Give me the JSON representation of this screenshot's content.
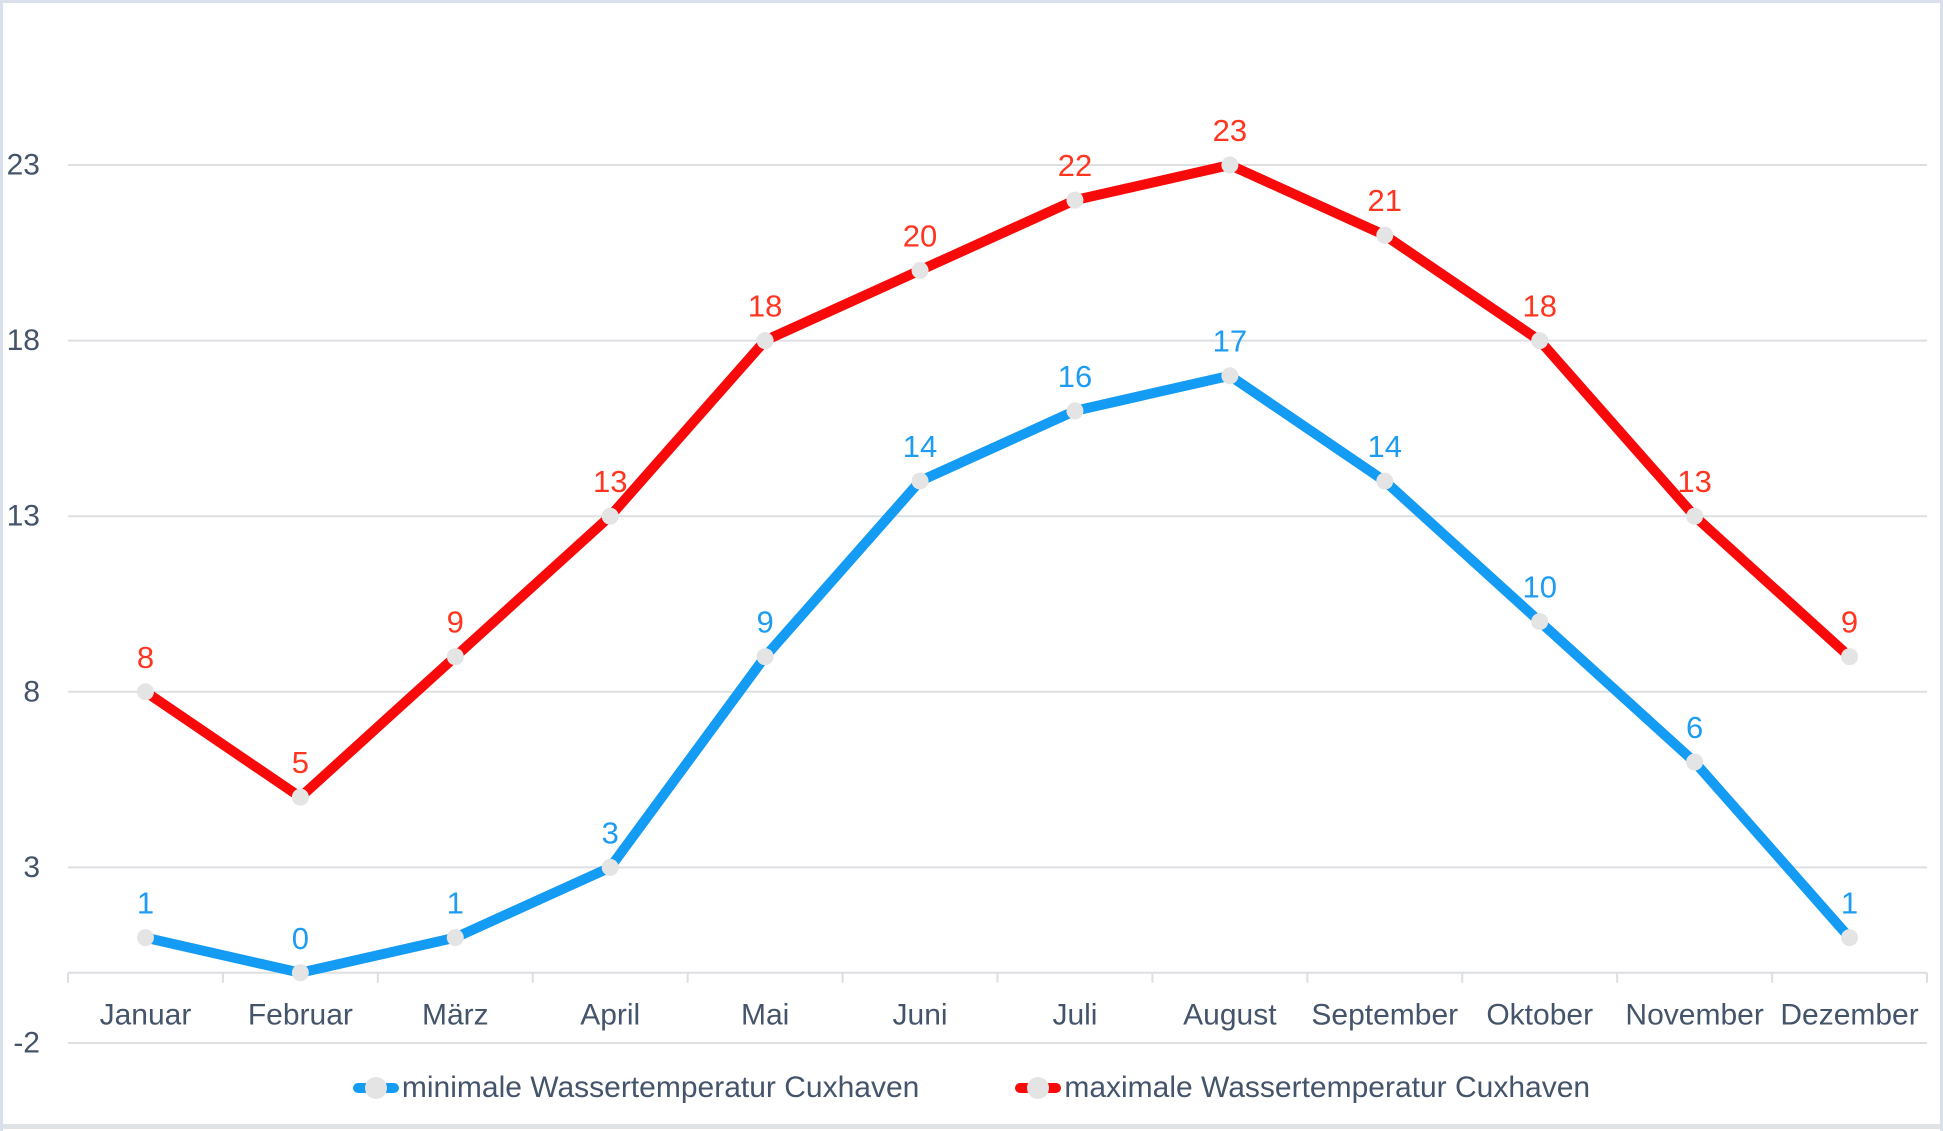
{
  "page": {
    "background": "#ffffff",
    "border_color": "#d9e0ec",
    "bottom_strip_color": "#dfe3e8"
  },
  "chart_data": {
    "type": "line",
    "title": "",
    "xlabel": "",
    "ylabel": "",
    "categories": [
      "Januar",
      "Februar",
      "März",
      "April",
      "Mai",
      "Juni",
      "Juli",
      "August",
      "September",
      "Oktober",
      "November",
      "Dezember"
    ],
    "series": [
      {
        "name": "minimale Wassertemperatur Cuxhaven",
        "values": [
          1,
          0,
          1,
          3,
          9,
          14,
          16,
          17,
          14,
          10,
          6,
          1
        ],
        "line_color": "#149bf3",
        "label_color": "#1e9cf2"
      },
      {
        "name": "maximale Wassertemperatur Cuxhaven",
        "values": [
          8,
          5,
          9,
          13,
          18,
          20,
          22,
          23,
          21,
          18,
          13,
          9
        ],
        "line_color": "#f80a0a",
        "label_color": "#ff3520"
      }
    ],
    "y_ticks": [
      -2,
      3,
      8,
      13,
      18,
      23
    ],
    "y_tick_labels": [
      "-2",
      "3",
      "8",
      "13",
      "18",
      "23"
    ],
    "ylim": [
      -2,
      23
    ],
    "x_axis_cross_value": 0,
    "grid": true,
    "data_labels": true,
    "legend_position": "bottom",
    "marker_color": "#e4e4e4",
    "axis_text_color": "#44546a",
    "gridline_color": "#dddfe2"
  }
}
